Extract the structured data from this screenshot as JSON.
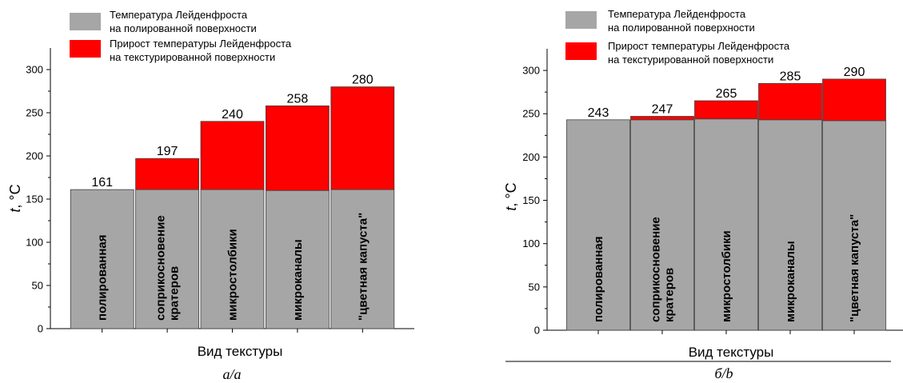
{
  "colors": {
    "base": "#a6a6a6",
    "increase": "#ff0000"
  },
  "legend": {
    "base_line1": "Температура Лейденфроста",
    "base_line2": "на полированной поверхности",
    "increase_line1": "Прирост температуры Лейденфроста",
    "increase_line2": "на текстурированной поверхности"
  },
  "chart_data": [
    {
      "type": "bar",
      "stacked": true,
      "caption": "а/a",
      "xlabel": "Вид текстуры",
      "ylabel_italic": "t",
      "ylabel_rest": ", °C",
      "ylim": [
        0,
        325
      ],
      "yticks": [
        0,
        50,
        100,
        150,
        200,
        250,
        300
      ],
      "categories": [
        [
          "полированная"
        ],
        [
          "соприкосновение",
          "кратеров"
        ],
        [
          "микростолбики"
        ],
        [
          "микроканалы"
        ],
        [
          "\"цветная капуста\""
        ]
      ],
      "series": [
        {
          "name": "Температура Лейденфроста на полированной поверхности",
          "values": [
            161,
            161,
            161,
            160,
            161
          ]
        },
        {
          "name": "Прирост температуры Лейденфроста на текстурированной поверхности",
          "values": [
            0,
            36,
            79,
            98,
            119
          ]
        }
      ],
      "totals": [
        161,
        197,
        240,
        258,
        280
      ]
    },
    {
      "type": "bar",
      "stacked": true,
      "caption": "б/b",
      "xlabel": "Вид текстуры",
      "ylabel_italic": "t",
      "ylabel_rest": ", °C",
      "ylim": [
        0,
        325
      ],
      "yticks": [
        0,
        50,
        100,
        150,
        200,
        250,
        300
      ],
      "categories": [
        [
          "полированная"
        ],
        [
          "соприкосновение",
          "кратеров"
        ],
        [
          "микростолбики"
        ],
        [
          "микроканалы"
        ],
        [
          "\"цветная капуста\""
        ]
      ],
      "series": [
        {
          "name": "Температура Лейденфроста на полированной поверхности",
          "values": [
            243,
            243,
            244,
            243,
            242
          ]
        },
        {
          "name": "Прирост температуры Лейденфроста на текстурированной поверхности",
          "values": [
            0,
            4,
            21,
            42,
            48
          ]
        }
      ],
      "totals": [
        243,
        247,
        265,
        285,
        290
      ]
    }
  ]
}
